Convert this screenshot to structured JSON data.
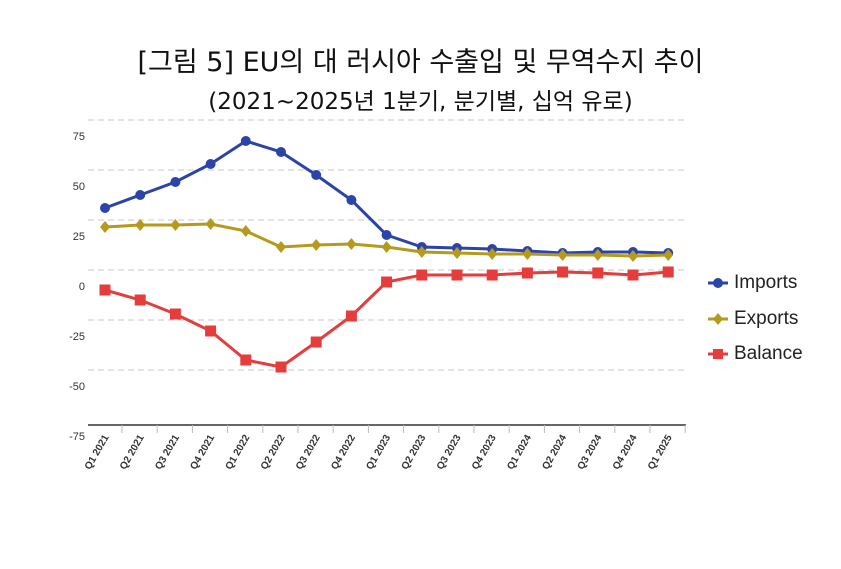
{
  "chart_data": {
    "type": "line",
    "title": "[그림 5] EU의 대 러시아 수출입 및 무역수지 추이",
    "subtitle": "(2021~2025년 1분기, 분기별, 십억 유로)",
    "xlabel": "",
    "ylabel": "",
    "categories": [
      "Q1 2021",
      "Q2 2021",
      "Q3 2021",
      "Q4 2021",
      "Q1 2022",
      "Q2 2022",
      "Q3 2022",
      "Q4 2022",
      "Q1 2023",
      "Q2 2023",
      "Q3 2023",
      "Q4 2023",
      "Q1 2024",
      "Q2 2024",
      "Q3 2024",
      "Q4 2024",
      "Q1 2025"
    ],
    "yticks": [
      "75",
      "50",
      "25",
      "0",
      "-25",
      "-50",
      "-75"
    ],
    "ylim": [
      -75,
      75
    ],
    "grid": true,
    "legend_position": "right",
    "series": [
      {
        "name": "Imports",
        "color": "#2a44a8",
        "marker": "circle",
        "values": [
          31,
          37.5,
          44,
          53,
          64.5,
          59,
          47.5,
          35,
          17.5,
          11.5,
          11,
          10.5,
          9.5,
          8.5,
          9,
          9,
          8.5
        ]
      },
      {
        "name": "Exports",
        "color": "#b59a1e",
        "marker": "diamond",
        "values": [
          21.5,
          22.5,
          22.5,
          23,
          19.5,
          11.5,
          12.5,
          13,
          11.5,
          9,
          8.5,
          8,
          8,
          7.5,
          7.5,
          7,
          7.5
        ]
      },
      {
        "name": "Balance",
        "color": "#e53c3c",
        "marker": "square",
        "values": [
          -10,
          -15,
          -22,
          -30.5,
          -45,
          -48.5,
          -36,
          -23,
          -6,
          -2.5,
          -2.5,
          -2.5,
          -1.5,
          -1,
          -1.5,
          -2.5,
          -1
        ]
      }
    ]
  }
}
